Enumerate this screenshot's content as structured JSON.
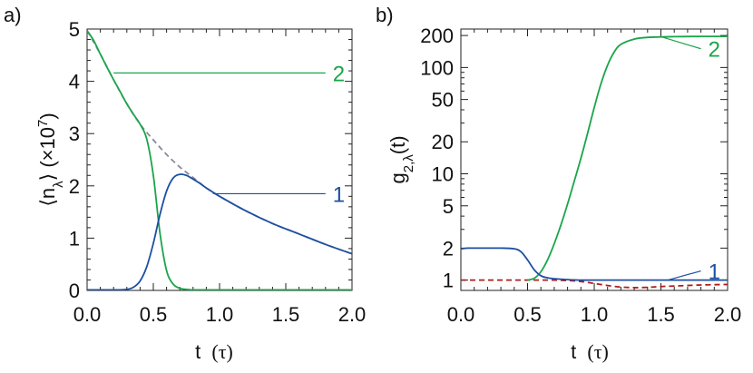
{
  "chart_data": [
    {
      "type": "line",
      "panel_label": "a)",
      "xlabel_main": "t",
      "xlabel_unit": "(τ)",
      "ylabel": "⟨n_λ⟩ (×10^7)",
      "xlim": [
        0,
        2
      ],
      "ylim": [
        0,
        5
      ],
      "x_ticks": [
        0,
        0.5,
        1,
        1.5,
        2
      ],
      "x_tick_labels": [
        "0.0",
        "0.5",
        "1.0",
        "1.5",
        "2.0"
      ],
      "y_ticks": [
        0,
        1,
        2,
        3,
        4,
        5
      ],
      "y_tick_labels": [
        "0",
        "1",
        "2",
        "3",
        "4",
        "5"
      ],
      "grid": false,
      "series": [
        {
          "name": "2",
          "color": "#1aa54a",
          "dash": false,
          "x": [
            0,
            0.05,
            0.1,
            0.15,
            0.2,
            0.25,
            0.3,
            0.35,
            0.4,
            0.45,
            0.5,
            0.55,
            0.6,
            0.65,
            0.7,
            0.75,
            0.8,
            0.9,
            1.0,
            1.25,
            1.5,
            1.75,
            2.0
          ],
          "y": [
            4.97,
            4.78,
            4.52,
            4.27,
            4.03,
            3.8,
            3.57,
            3.37,
            3.18,
            2.9,
            2.2,
            1.1,
            0.38,
            0.12,
            0.04,
            0.02,
            0.01,
            0.01,
            0.01,
            0.01,
            0.01,
            0.01,
            0.01
          ]
        },
        {
          "name": "1",
          "color": "#1c4fa1",
          "dash": false,
          "x": [
            0,
            0.1,
            0.2,
            0.3,
            0.35,
            0.4,
            0.45,
            0.5,
            0.55,
            0.6,
            0.65,
            0.7,
            0.75,
            0.8,
            0.85,
            0.9,
            1.0,
            1.2,
            1.4,
            1.6,
            1.8,
            2.0
          ],
          "y": [
            0.01,
            0.01,
            0.01,
            0.02,
            0.06,
            0.18,
            0.45,
            0.9,
            1.45,
            1.9,
            2.15,
            2.22,
            2.2,
            2.13,
            2.05,
            1.96,
            1.8,
            1.52,
            1.28,
            1.08,
            0.88,
            0.7
          ]
        },
        {
          "name": "",
          "color": "#8a8a9a",
          "dash": true,
          "x": [
            0,
            0.1,
            0.2,
            0.3,
            0.4,
            0.5,
            0.6,
            0.7,
            0.8,
            0.9,
            1.0,
            1.2,
            1.4,
            1.6,
            1.8,
            2.0
          ],
          "y": [
            4.97,
            4.52,
            4.03,
            3.57,
            3.18,
            2.88,
            2.6,
            2.36,
            2.16,
            1.96,
            1.8,
            1.52,
            1.28,
            1.08,
            0.88,
            0.7
          ]
        }
      ],
      "annotations": [
        {
          "text": "2",
          "color": "#1aa54a",
          "line_from": [
            0.2,
            4.16
          ],
          "line_to": [
            1.8,
            4.16
          ]
        },
        {
          "text": "1",
          "color": "#1c4fa1",
          "line_from": [
            0.95,
            1.85
          ],
          "line_to": [
            1.8,
            1.85
          ]
        }
      ]
    },
    {
      "type": "line",
      "panel_label": "b)",
      "xlabel_main": "t",
      "xlabel_unit": "(τ)",
      "ylabel": "g_{2,λ}(t)",
      "xlim": [
        0,
        2
      ],
      "ylim": [
        0.8,
        230
      ],
      "y_scale": "log",
      "x_ticks": [
        0,
        0.5,
        1,
        1.5,
        2
      ],
      "x_tick_labels": [
        "0.0",
        "0.5",
        "1.0",
        "1.5",
        "2.0"
      ],
      "y_ticks": [
        1,
        2,
        5,
        10,
        20,
        50,
        100,
        200
      ],
      "y_tick_labels": [
        "1",
        "2",
        "5",
        "10",
        "20",
        "50",
        "100",
        "200"
      ],
      "grid": false,
      "series": [
        {
          "name": "2",
          "color": "#1aa54a",
          "dash": false,
          "x": [
            0.5,
            0.55,
            0.6,
            0.65,
            0.7,
            0.75,
            0.8,
            0.85,
            0.9,
            0.95,
            1.0,
            1.05,
            1.1,
            1.15,
            1.2,
            1.3,
            1.4,
            1.6,
            1.8,
            2.0
          ],
          "y": [
            1.0,
            1.04,
            1.2,
            1.55,
            2.2,
            3.3,
            5.2,
            8.5,
            14,
            24,
            42,
            70,
            105,
            140,
            165,
            185,
            192,
            195,
            196,
            196
          ]
        },
        {
          "name": "1",
          "color": "#1c4fa1",
          "dash": false,
          "x": [
            0,
            0.05,
            0.1,
            0.2,
            0.3,
            0.4,
            0.45,
            0.5,
            0.55,
            0.6,
            0.65,
            0.7,
            0.8,
            0.9,
            1.0,
            1.5,
            2.0
          ],
          "y": [
            1.97,
            2.0,
            2.0,
            2.0,
            2.0,
            1.97,
            1.85,
            1.55,
            1.25,
            1.1,
            1.05,
            1.03,
            1.01,
            1.0,
            1.0,
            1.0,
            1.0
          ]
        },
        {
          "name": "",
          "color": "#b01c1c",
          "dash": true,
          "x": [
            0,
            0.2,
            0.4,
            0.6,
            0.7,
            0.8,
            0.9,
            1.0,
            1.1,
            1.2,
            1.3,
            1.4,
            1.5,
            1.6,
            1.8,
            2.0
          ],
          "y": [
            1.0,
            1.0,
            1.0,
            1.0,
            1.0,
            0.99,
            0.97,
            0.93,
            0.89,
            0.86,
            0.85,
            0.855,
            0.87,
            0.88,
            0.9,
            0.91
          ]
        }
      ],
      "annotations": [
        {
          "text": "2",
          "color": "#1aa54a",
          "line_from": [
            1.5,
            195
          ],
          "line_to": [
            1.8,
            150
          ]
        },
        {
          "text": "1",
          "color": "#1c4fa1",
          "line_from": [
            1.55,
            1.0
          ],
          "line_to": [
            1.8,
            1.22
          ]
        }
      ]
    }
  ]
}
